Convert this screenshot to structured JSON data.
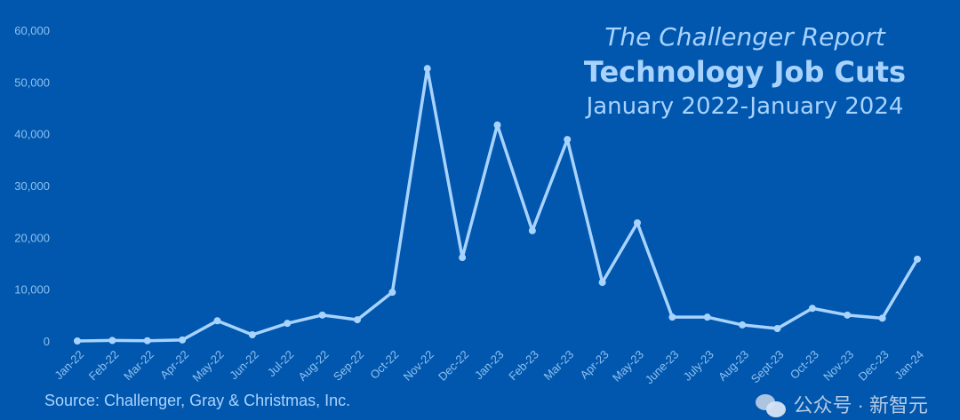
{
  "chart_data": {
    "type": "line",
    "title": "The Challenger Report",
    "subtitle": "Technology Job Cuts",
    "date_range": "January 2022-January 2024",
    "xlabel": "",
    "ylabel": "",
    "ylim": [
      0,
      60000
    ],
    "yticks": [
      "0",
      "10,000",
      "20,000",
      "30,000",
      "40,000",
      "50,000",
      "60,000"
    ],
    "ytick_values": [
      0,
      10000,
      20000,
      30000,
      40000,
      50000,
      60000
    ],
    "grid": false,
    "categories": [
      "Jan-22",
      "Feb-22",
      "Mar-22",
      "Apr-22",
      "May-22",
      "Jun-22",
      "Jul-22",
      "Aug-22",
      "Sep-22",
      "Oct-22",
      "Nov-22",
      "Dec-22",
      "Jan-23",
      "Feb-23",
      "Mar-23",
      "Apr-23",
      "May-23",
      "June-23",
      "July-23",
      "Aug-23",
      "Sept-23",
      "Oct-23",
      "Nov-23",
      "Dec-23",
      "Jan-24"
    ],
    "series": [
      {
        "name": "Technology Job Cuts",
        "color": "#a9d3ff",
        "values": [
          0,
          100,
          50,
          200,
          3900,
          1200,
          3400,
          5000,
          4100,
          9400,
          52600,
          16100,
          41700,
          21300,
          38900,
          11300,
          22800,
          4600,
          4600,
          3100,
          2400,
          6300,
          5000,
          4400,
          15800
        ]
      }
    ],
    "source": "Source: Challenger, Gray & Christmas, Inc."
  },
  "watermark": {
    "text": "公众号 · 新智元"
  },
  "colors": {
    "background": "#0057ad",
    "accent": "#a9d3ff"
  }
}
